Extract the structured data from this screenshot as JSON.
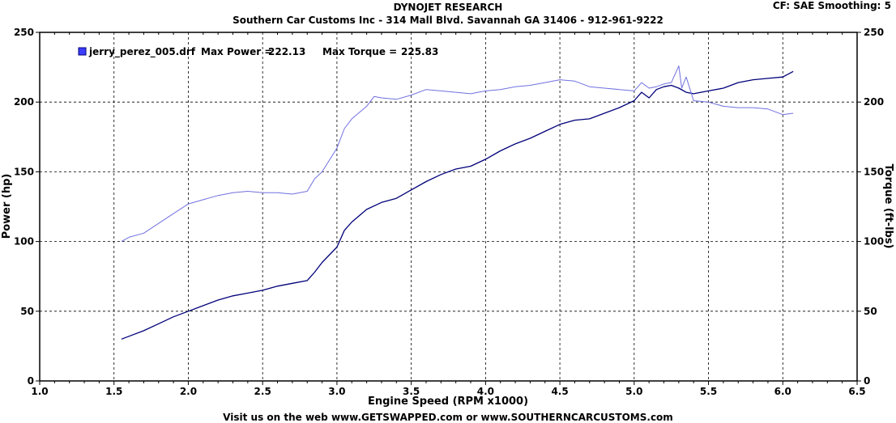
{
  "header": {
    "title": "DYNOJET RESEARCH",
    "subtitle": "Southern Car Customs Inc - 314 Mall Blvd. Savannah GA 31406 - 912-961-9222",
    "settings": "CF: SAE  Smoothing: 5"
  },
  "footer": {
    "text": "Visit us on the web www.GETSWAPPED.com or www.SOUTHERNCARCUSTOMS.com"
  },
  "chart_data": {
    "type": "line",
    "xlabel": "Engine Speed (RPM x1000)",
    "ylabel_left": "Power (hp)",
    "ylabel_right": "Torque (ft-lbs)",
    "xlim": [
      1.0,
      6.5
    ],
    "ylim": [
      0,
      250
    ],
    "x_ticks": [
      "1.0",
      "1.5",
      "2.0",
      "2.5",
      "3.0",
      "3.5",
      "4.0",
      "4.5",
      "5.0",
      "5.5",
      "6.0",
      "6.5"
    ],
    "y_ticks": [
      "0",
      "50",
      "100",
      "150",
      "200",
      "250"
    ],
    "grid": true,
    "legend": {
      "run": "jerry_perez_005.drf",
      "max_power_label": "Max Power =",
      "max_power": "222.13",
      "max_torque_label": "Max Torque =",
      "max_torque": "225.83",
      "color": "#3d3dff",
      "placement": "top-left"
    },
    "series": [
      {
        "kind": "power",
        "color": "#00007a",
        "x": [
          1.55,
          1.6,
          1.7,
          1.8,
          1.9,
          2.0,
          2.1,
          2.2,
          2.3,
          2.4,
          2.5,
          2.6,
          2.7,
          2.8,
          2.85,
          2.9,
          3.0,
          3.05,
          3.1,
          3.2,
          3.3,
          3.4,
          3.5,
          3.6,
          3.7,
          3.8,
          3.9,
          4.0,
          4.1,
          4.2,
          4.3,
          4.4,
          4.5,
          4.6,
          4.7,
          4.8,
          4.9,
          5.0,
          5.05,
          5.1,
          5.15,
          5.2,
          5.25,
          5.3,
          5.35,
          5.4,
          5.5,
          5.6,
          5.7,
          5.8,
          5.9,
          6.0,
          6.07
        ],
        "values": [
          30,
          32,
          36,
          41,
          46,
          50,
          54,
          58,
          61,
          63,
          65,
          68,
          70,
          72,
          78,
          85,
          96,
          108,
          114,
          123,
          128,
          131,
          137,
          143,
          148,
          152,
          154,
          159,
          165,
          170,
          174,
          179,
          184,
          187,
          188,
          192,
          196,
          201,
          207,
          203,
          209,
          211,
          212,
          210,
          207,
          206,
          208,
          210,
          214,
          216,
          217,
          218,
          222
        ]
      },
      {
        "kind": "torque",
        "color": "#7070e0",
        "x": [
          1.55,
          1.6,
          1.7,
          1.8,
          1.9,
          2.0,
          2.1,
          2.2,
          2.3,
          2.4,
          2.5,
          2.6,
          2.7,
          2.8,
          2.85,
          2.9,
          3.0,
          3.05,
          3.1,
          3.2,
          3.25,
          3.3,
          3.4,
          3.5,
          3.6,
          3.7,
          3.8,
          3.9,
          4.0,
          4.1,
          4.2,
          4.3,
          4.4,
          4.5,
          4.6,
          4.7,
          4.8,
          4.9,
          5.0,
          5.05,
          5.1,
          5.15,
          5.2,
          5.25,
          5.3,
          5.32,
          5.35,
          5.4,
          5.5,
          5.6,
          5.7,
          5.8,
          5.9,
          6.0,
          6.07
        ],
        "values": [
          100,
          103,
          106,
          113,
          120,
          127,
          130,
          133,
          135,
          136,
          135,
          135,
          134,
          136,
          145,
          150,
          167,
          181,
          188,
          197,
          204,
          203,
          202,
          205,
          209,
          208,
          207,
          206,
          208,
          209,
          211,
          212,
          214,
          216,
          215,
          211,
          210,
          209,
          208,
          214,
          210,
          211,
          213,
          214,
          226,
          210,
          218,
          201,
          200,
          197,
          196,
          196,
          195,
          191,
          192
        ]
      }
    ]
  }
}
